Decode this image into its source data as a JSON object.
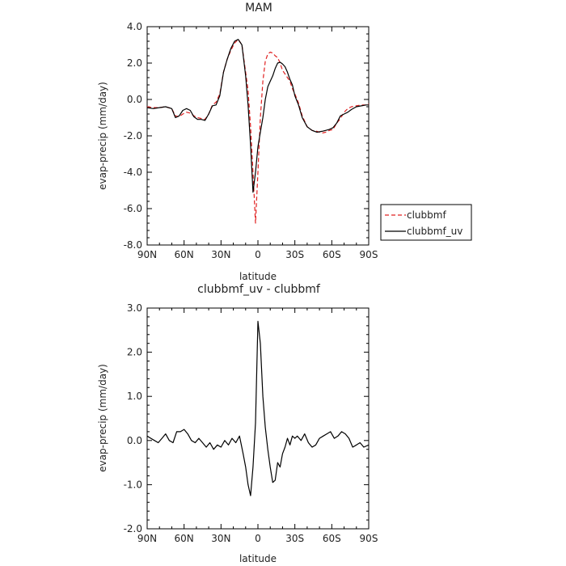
{
  "chart_data": [
    {
      "type": "line",
      "title": "MAM",
      "xlabel": "latitude",
      "ylabel": "evap-precip (mm/day)",
      "xlim": [
        90,
        -90
      ],
      "ylim": [
        -8,
        4
      ],
      "xticks": [
        90,
        60,
        30,
        0,
        -30,
        -60,
        -90
      ],
      "xtick_labels": [
        "90N",
        "60N",
        "30N",
        "0",
        "30S",
        "60S",
        "90S"
      ],
      "yticks": [
        -8,
        -6,
        -4,
        -2,
        0,
        2,
        4
      ],
      "ytick_labels": [
        "-8.0",
        "-6.0",
        "-4.0",
        "-2.0",
        "0.0",
        "2.0",
        "4.0"
      ],
      "legend": "lower-right outside",
      "series": [
        {
          "name": "clubbmf",
          "color": "#e02020",
          "dash": true,
          "x": [
            90,
            85,
            80,
            75,
            70,
            67,
            64,
            61,
            58,
            55,
            52,
            49,
            46,
            43,
            40,
            37,
            34,
            31,
            28,
            25,
            22,
            19,
            16,
            13,
            10,
            8,
            6,
            4,
            2,
            0,
            -2,
            -4,
            -6,
            -8,
            -10,
            -12,
            -14,
            -16,
            -18,
            -20,
            -22,
            -24,
            -26,
            -28,
            -30,
            -33,
            -36,
            -40,
            -44,
            -48,
            -52,
            -55,
            -58,
            -61,
            -64,
            -67,
            -70,
            -73,
            -76,
            -80,
            -84,
            -88,
            -90
          ],
          "y": [
            -0.4,
            -0.45,
            -0.45,
            -0.4,
            -0.5,
            -0.9,
            -0.95,
            -0.8,
            -0.7,
            -0.75,
            -0.9,
            -1.0,
            -1.05,
            -1.1,
            -0.8,
            -0.3,
            -0.15,
            0.3,
            1.5,
            2.2,
            2.7,
            3.1,
            3.3,
            3.0,
            1.5,
            0.5,
            -1.5,
            -4.0,
            -6.8,
            -4.0,
            -1.0,
            1.0,
            2.1,
            2.5,
            2.6,
            2.55,
            2.4,
            2.3,
            2.0,
            1.6,
            1.4,
            1.2,
            1.0,
            0.6,
            0.3,
            -0.2,
            -0.9,
            -1.5,
            -1.7,
            -1.75,
            -1.85,
            -1.8,
            -1.7,
            -1.65,
            -1.3,
            -1.05,
            -0.7,
            -0.5,
            -0.4,
            -0.35,
            -0.3,
            -0.3,
            -0.25
          ]
        },
        {
          "name": "clubbmf_uv",
          "color": "#000000",
          "dash": false,
          "x": [
            90,
            85,
            80,
            75,
            70,
            67,
            64,
            61,
            58,
            55,
            52,
            49,
            46,
            43,
            40,
            37,
            34,
            31,
            28,
            25,
            22,
            19,
            16,
            13,
            10,
            8,
            6,
            4,
            2,
            0,
            -2,
            -4,
            -6,
            -8,
            -10,
            -12,
            -14,
            -16,
            -18,
            -20,
            -22,
            -24,
            -26,
            -28,
            -30,
            -33,
            -36,
            -40,
            -44,
            -48,
            -52,
            -55,
            -58,
            -61,
            -64,
            -67,
            -70,
            -73,
            -76,
            -80,
            -84,
            -88,
            -90
          ],
          "y": [
            -0.45,
            -0.5,
            -0.45,
            -0.4,
            -0.5,
            -1.0,
            -0.9,
            -0.6,
            -0.5,
            -0.6,
            -0.95,
            -1.1,
            -1.1,
            -1.15,
            -0.8,
            -0.35,
            -0.3,
            0.2,
            1.5,
            2.2,
            2.8,
            3.2,
            3.3,
            3.0,
            1.3,
            -0.3,
            -2.5,
            -5.1,
            -4.0,
            -2.6,
            -1.8,
            -1.0,
            0.0,
            0.7,
            1.0,
            1.3,
            1.7,
            2.0,
            2.05,
            1.95,
            1.8,
            1.5,
            1.1,
            0.8,
            0.2,
            -0.3,
            -1.0,
            -1.5,
            -1.7,
            -1.8,
            -1.75,
            -1.7,
            -1.65,
            -1.55,
            -1.3,
            -0.9,
            -0.8,
            -0.7,
            -0.55,
            -0.4,
            -0.35,
            -0.3,
            -0.3
          ]
        }
      ]
    },
    {
      "type": "line",
      "title": "clubbmf_uv - clubbmf",
      "xlabel": "latitude",
      "ylabel": "evap-precip (mm/day)",
      "xlim": [
        90,
        -90
      ],
      "ylim": [
        -2,
        3
      ],
      "xticks": [
        90,
        60,
        30,
        0,
        -30,
        -60,
        -90
      ],
      "xtick_labels": [
        "90N",
        "60N",
        "30N",
        "0",
        "30S",
        "60S",
        "90S"
      ],
      "yticks": [
        -2,
        -1,
        0,
        1,
        2,
        3
      ],
      "ytick_labels": [
        "-2.0",
        "-1.0",
        "0.0",
        "1.0",
        "2.0",
        "3.0"
      ],
      "series": [
        {
          "color": "#000000",
          "dash": false,
          "x": [
            90,
            87,
            84,
            81,
            78,
            75,
            72,
            69,
            66,
            63,
            60,
            57,
            54,
            51,
            48,
            45,
            42,
            39,
            36,
            33,
            30,
            27,
            24,
            21,
            18,
            15,
            12,
            10,
            8,
            6,
            4,
            2,
            0,
            -2,
            -4,
            -6,
            -8,
            -10,
            -12,
            -14,
            -16,
            -18,
            -20,
            -22,
            -24,
            -26,
            -28,
            -30,
            -32,
            -35,
            -38,
            -41,
            -44,
            -47,
            -50,
            -53,
            -56,
            -59,
            -62,
            -65,
            -68,
            -71,
            -74,
            -77,
            -80,
            -83,
            -86,
            -90
          ],
          "y": [
            0.1,
            0.05,
            0.0,
            -0.05,
            0.05,
            0.15,
            0.0,
            -0.05,
            0.2,
            0.2,
            0.25,
            0.15,
            0.0,
            -0.05,
            0.05,
            -0.05,
            -0.15,
            -0.05,
            -0.2,
            -0.1,
            -0.15,
            0.0,
            -0.1,
            0.05,
            -0.05,
            0.1,
            -0.3,
            -0.6,
            -1.0,
            -1.25,
            -0.6,
            0.4,
            2.7,
            2.2,
            1.0,
            0.3,
            -0.2,
            -0.6,
            -0.95,
            -0.9,
            -0.5,
            -0.6,
            -0.3,
            -0.15,
            0.05,
            -0.1,
            0.1,
            0.05,
            0.1,
            0.0,
            0.15,
            -0.05,
            -0.15,
            -0.1,
            0.05,
            0.1,
            0.15,
            0.2,
            0.05,
            0.1,
            0.2,
            0.15,
            0.05,
            -0.15,
            -0.1,
            -0.05,
            -0.15,
            -0.1
          ]
        }
      ]
    }
  ]
}
